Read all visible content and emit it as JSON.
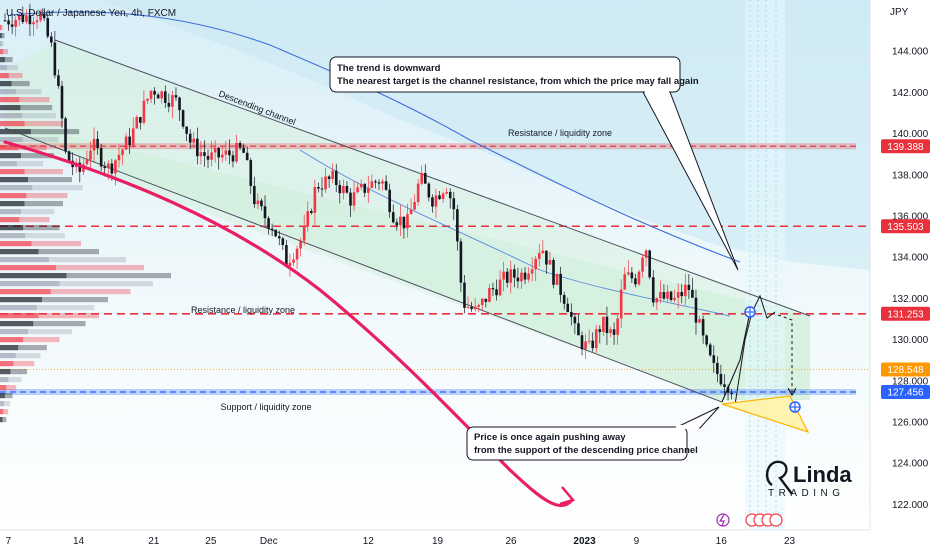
{
  "header": {
    "symbol_title": "U.S. Dollar / Japanese Yen, 4h, FXCM",
    "currency": "JPY"
  },
  "annotations": {
    "trend_line1": "The trend is downward",
    "trend_line2": "The nearest target is the channel resistance, from which the price may fall again",
    "support_line1": "Price is once again pushing away",
    "support_line2": "from the support of the descending price channel",
    "channel_label": "Descending channel",
    "zone_upper": "Resistance / liquidity zone",
    "zone_middle": "Resistance / liquidity zone",
    "zone_lower": "Support / liquidity zone"
  },
  "logo": {
    "top": "Linda",
    "bottom": "TRADING"
  },
  "colors": {
    "resistance": "#e8313b",
    "support": "#2962ff",
    "curve": "#e91e63",
    "up_candle": "#f23645",
    "down_candle": "#131722",
    "channel_fill": "#d7f1e4",
    "bg_top": "#e7f5fb",
    "ma_blue": "#3f6fde",
    "target_triangle": "#fff3b0"
  },
  "chart_data": {
    "type": "candlestick",
    "instrument": "USD/JPY",
    "timeframe": "4h",
    "ylim": [
      121.0,
      146.0
    ],
    "x_ticks": [
      "7",
      "14",
      "21",
      "25",
      "Dec",
      "12",
      "19",
      "26",
      "2023",
      "9",
      "16",
      "23"
    ],
    "y_ticks": [
      122.0,
      124.0,
      126.0,
      128.0,
      130.0,
      132.0,
      134.0,
      136.0,
      138.0,
      140.0,
      142.0,
      144.0
    ],
    "grid": false,
    "levels": [
      {
        "value": 139.388,
        "label": "139.388",
        "color": "#e8313b",
        "style": "band"
      },
      {
        "value": 135.503,
        "label": "135.503",
        "color": "#e8313b",
        "style": "dashed"
      },
      {
        "value": 131.253,
        "label": "131.253",
        "color": "#e8313b",
        "style": "dashed"
      },
      {
        "value": 128.548,
        "label": "128.548",
        "color": "#ff9800",
        "style": "dotted"
      },
      {
        "value": 127.456,
        "label": "127.456",
        "color": "#2962ff",
        "style": "band"
      }
    ],
    "price_path": [
      [
        0.0,
        145.5
      ],
      [
        0.04,
        145.8
      ],
      [
        0.055,
        144.0
      ],
      [
        0.065,
        141.0
      ],
      [
        0.07,
        139.0
      ],
      [
        0.085,
        138.0
      ],
      [
        0.1,
        139.5
      ],
      [
        0.12,
        138.3
      ],
      [
        0.145,
        139.8
      ],
      [
        0.17,
        142.2
      ],
      [
        0.2,
        141.5
      ],
      [
        0.215,
        139.5
      ],
      [
        0.235,
        138.8
      ],
      [
        0.26,
        139.0
      ],
      [
        0.275,
        139.2
      ],
      [
        0.29,
        136.5
      ],
      [
        0.31,
        135.5
      ],
      [
        0.325,
        133.8
      ],
      [
        0.345,
        135.0
      ],
      [
        0.36,
        137.5
      ],
      [
        0.38,
        137.8
      ],
      [
        0.4,
        136.8
      ],
      [
        0.42,
        137.5
      ],
      [
        0.435,
        137.8
      ],
      [
        0.45,
        136.0
      ],
      [
        0.465,
        135.6
      ],
      [
        0.48,
        137.8
      ],
      [
        0.495,
        136.8
      ],
      [
        0.51,
        137.6
      ],
      [
        0.52,
        136.2
      ],
      [
        0.525,
        133.5
      ],
      [
        0.53,
        131.8
      ],
      [
        0.545,
        131.3
      ],
      [
        0.56,
        132.3
      ],
      [
        0.58,
        133.0
      ],
      [
        0.6,
        133.2
      ],
      [
        0.62,
        134.6
      ],
      [
        0.635,
        133.0
      ],
      [
        0.65,
        131.8
      ],
      [
        0.66,
        130.2
      ],
      [
        0.675,
        129.5
      ],
      [
        0.69,
        130.8
      ],
      [
        0.705,
        130.0
      ],
      [
        0.715,
        133.0
      ],
      [
        0.73,
        133.0
      ],
      [
        0.74,
        134.8
      ],
      [
        0.75,
        132.0
      ],
      [
        0.76,
        132.0
      ],
      [
        0.775,
        131.9
      ],
      [
        0.79,
        132.6
      ],
      [
        0.8,
        131.0
      ],
      [
        0.81,
        129.5
      ],
      [
        0.82,
        128.5
      ],
      [
        0.835,
        127.9
      ],
      [
        0.84,
        127.7
      ]
    ],
    "projection": [
      [
        0.84,
        127.7
      ],
      [
        0.875,
        131.3
      ],
      [
        0.885,
        132.3
      ],
      [
        0.9,
        131.0
      ],
      [
        0.92,
        127.4
      ]
    ],
    "volume_profile": [
      3,
      5,
      4,
      9,
      14,
      20,
      25,
      33,
      46,
      55,
      58,
      62,
      70,
      88,
      65,
      52,
      60,
      48,
      70,
      80,
      92,
      75,
      70,
      60,
      55,
      66,
      72,
      90,
      110,
      140,
      160,
      190,
      170,
      145,
      120,
      105,
      110,
      95,
      80,
      66,
      52,
      45,
      38,
      30,
      24,
      18,
      14,
      11,
      9,
      7
    ]
  }
}
